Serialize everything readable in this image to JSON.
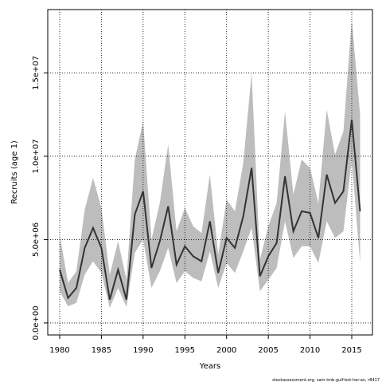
{
  "chart_data": {
    "type": "line",
    "xlabel": "Years",
    "ylabel": "Recruits (age 1)",
    "footnote": "stockassessment.org, sam-tmb-gulf-bot-her-an, r8417",
    "x": [
      1980,
      1981,
      1982,
      1983,
      1984,
      1985,
      1986,
      1987,
      1988,
      1989,
      1990,
      1991,
      1992,
      1993,
      1994,
      1995,
      1996,
      1997,
      1998,
      1999,
      2000,
      2001,
      2002,
      2003,
      2004,
      2005,
      2006,
      2007,
      2008,
      2009,
      2010,
      2011,
      2012,
      2013,
      2014,
      2015,
      2016
    ],
    "values": [
      3200000,
      1500000,
      2100000,
      4500000,
      5700000,
      4500000,
      1400000,
      3200000,
      1400000,
      6500000,
      7900000,
      3300000,
      4900000,
      7000000,
      3500000,
      4600000,
      4000000,
      3700000,
      6100000,
      3000000,
      5100000,
      4500000,
      6400000,
      9300000,
      2800000,
      4000000,
      4800000,
      8800000,
      5500000,
      6700000,
      6600000,
      5100000,
      8900000,
      7200000,
      7900000,
      12200000,
      6700000
    ],
    "upper": [
      5300000,
      2400000,
      3100000,
      6800000,
      8700000,
      6900000,
      2900000,
      4900000,
      2600000,
      9800000,
      12100000,
      5000000,
      7200000,
      10700000,
      5500000,
      6900000,
      5800000,
      5400000,
      8900000,
      4100000,
      7400000,
      6700000,
      9600000,
      15000000,
      3800000,
      5800000,
      7200000,
      12700000,
      7700000,
      9800000,
      9300000,
      7200000,
      12800000,
      10100000,
      11500000,
      18200000,
      12500000
    ],
    "lower": [
      1900000,
      1000000,
      1200000,
      2900000,
      3700000,
      3000000,
      900000,
      2100000,
      950000,
      4200000,
      5000000,
      2100000,
      3100000,
      4500000,
      2400000,
      3100000,
      2700000,
      2500000,
      4300000,
      2100000,
      3600000,
      3000000,
      4300000,
      5700000,
      1900000,
      2600000,
      3300000,
      6100000,
      3900000,
      4600000,
      4600000,
      3600000,
      6100000,
      5100000,
      5500000,
      9800000,
      3600000
    ],
    "color": "#333333",
    "band_color": "#bdbdbd",
    "xlim": [
      1978.57,
      2017.48
    ],
    "ylim": [
      -720000,
      18800000
    ],
    "xticks": [
      1980,
      1985,
      1990,
      1995,
      2000,
      2005,
      2010,
      2015
    ],
    "yticks": [
      {
        "value": 0,
        "label": "0.0e+00"
      },
      {
        "value": 5000000,
        "label": "5.0e+06"
      },
      {
        "value": 10000000,
        "label": "1.0e+07"
      },
      {
        "value": 15000000,
        "label": "1.5e+07"
      }
    ],
    "grid": true
  }
}
